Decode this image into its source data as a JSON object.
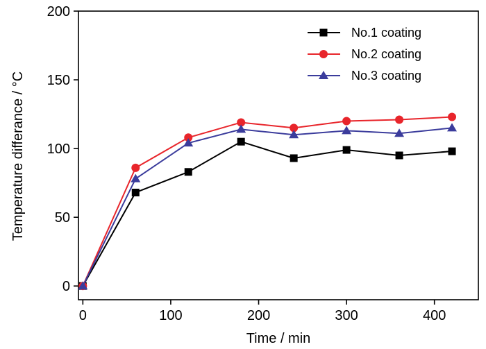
{
  "chart_data": {
    "type": "line",
    "title": "",
    "xlabel": "Time / min",
    "ylabel": "Temperature differance / °C",
    "xlim": [
      -5,
      450
    ],
    "ylim": [
      -10,
      200
    ],
    "x_ticks": [
      0,
      100,
      200,
      300,
      400
    ],
    "x_tick_labels": [
      "0",
      "100",
      "200",
      "300",
      "400"
    ],
    "y_ticks": [
      0,
      50,
      100,
      150,
      200
    ],
    "y_tick_labels": [
      "0",
      "50",
      "100",
      "150",
      "200"
    ],
    "grid": false,
    "legend_position": "top-right",
    "x": [
      0,
      60,
      120,
      180,
      240,
      300,
      360,
      420
    ],
    "series": [
      {
        "name": "No.1 coating",
        "color": "#000000",
        "marker": "square",
        "values": [
          0,
          68,
          83,
          105,
          93,
          99,
          95,
          98
        ]
      },
      {
        "name": "No.2 coating",
        "color": "#e8252b",
        "marker": "circle",
        "values": [
          0,
          86,
          108,
          119,
          115,
          120,
          121,
          123
        ]
      },
      {
        "name": "No.3 coating",
        "color": "#3b3c9c",
        "marker": "triangle",
        "values": [
          0,
          78,
          104,
          114,
          110,
          113,
          111,
          115
        ]
      }
    ]
  }
}
